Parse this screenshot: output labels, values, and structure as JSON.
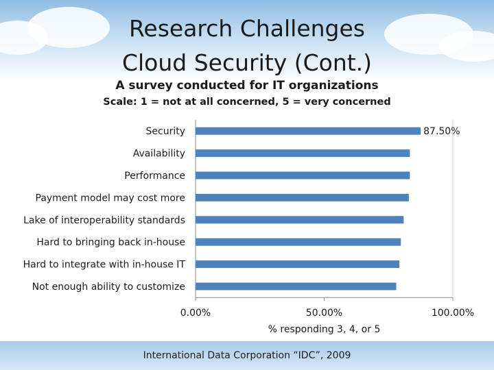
{
  "header": {
    "title_line1": "Research Challenges",
    "title_line2": "Cloud Security (Cont.)",
    "subtitle": "A survey conducted for IT organizations",
    "scale_note": "Scale: 1 = not at all concerned,  5 = very concerned"
  },
  "chart_data": {
    "type": "bar",
    "orientation": "horizontal",
    "categories": [
      "Security",
      "Availability",
      "Performance",
      "Payment model may cost more",
      "Lake of interoperability standards",
      "Hard to bringing back in-house",
      "Hard to integrate with in-house IT",
      "Not enough ability to customize"
    ],
    "values": [
      87.5,
      83.3,
      83.3,
      82.9,
      80.9,
      79.8,
      79.2,
      78.0
    ],
    "data_labels": [
      "87.50%",
      "",
      "",
      "",
      "",
      "",
      "",
      ""
    ],
    "xlim": [
      0,
      100
    ],
    "x_ticks": [
      "0.00%",
      "50.00%",
      "100.00%"
    ],
    "xlabel": "% responding 3, 4, or 5",
    "ylabel": "",
    "grid": false,
    "legend": "none",
    "bar_color": "#4f81bd"
  },
  "footer": {
    "source": "International Data Corporation “IDC”, 2009"
  }
}
